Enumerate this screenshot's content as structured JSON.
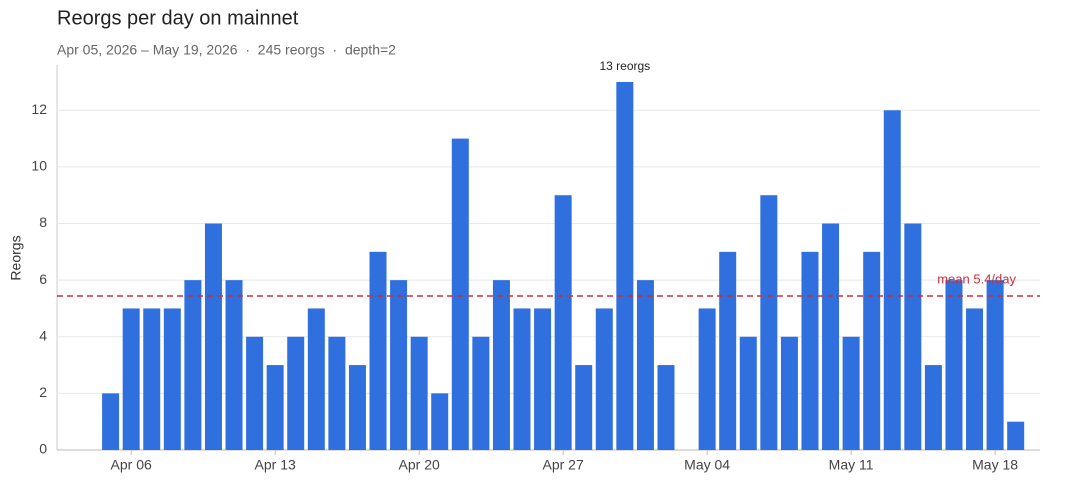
{
  "chart_data": {
    "type": "bar",
    "title": "Reorgs per day on mainnet",
    "subtitle": "Apr 05, 2026 – May 19, 2026  ·  245 reorgs  ·  depth=2",
    "y_label": "Reorgs",
    "categories": [
      null,
      "Apr 06",
      null,
      null,
      null,
      null,
      null,
      null,
      "Apr 13",
      null,
      null,
      null,
      null,
      null,
      null,
      "Apr 20",
      null,
      null,
      null,
      null,
      null,
      null,
      "Apr 27",
      null,
      null,
      null,
      null,
      null,
      null,
      "May 04",
      null,
      null,
      null,
      null,
      null,
      null,
      "May 11",
      null,
      null,
      null,
      null,
      null,
      null,
      "May 18",
      null
    ],
    "values": [
      2,
      5,
      5,
      5,
      6,
      8,
      6,
      4,
      3,
      4,
      5,
      4,
      3,
      7,
      6,
      4,
      2,
      11,
      4,
      6,
      5,
      5,
      9,
      3,
      5,
      13,
      6,
      3,
      0,
      5,
      7,
      4,
      9,
      4,
      7,
      8,
      4,
      7,
      12,
      8,
      3,
      6,
      5,
      6,
      1
    ],
    "value_labels": [
      null,
      null,
      null,
      null,
      null,
      null,
      null,
      null,
      null,
      null,
      null,
      null,
      null,
      null,
      null,
      null,
      null,
      null,
      null,
      null,
      null,
      null,
      null,
      null,
      null,
      "13 reorgs",
      null,
      null,
      null,
      null,
      null,
      null,
      null,
      null,
      null,
      null,
      null,
      null,
      null,
      null,
      null,
      null,
      null,
      null,
      null
    ],
    "color": "#2f6fde",
    "mean": {
      "value": 5.44,
      "label": "mean 5.4/day",
      "color": "#c8303f"
    },
    "ylim": [
      0,
      13.6
    ],
    "yticks": [
      0,
      2,
      4,
      6,
      8,
      10,
      12
    ],
    "grid": true
  }
}
